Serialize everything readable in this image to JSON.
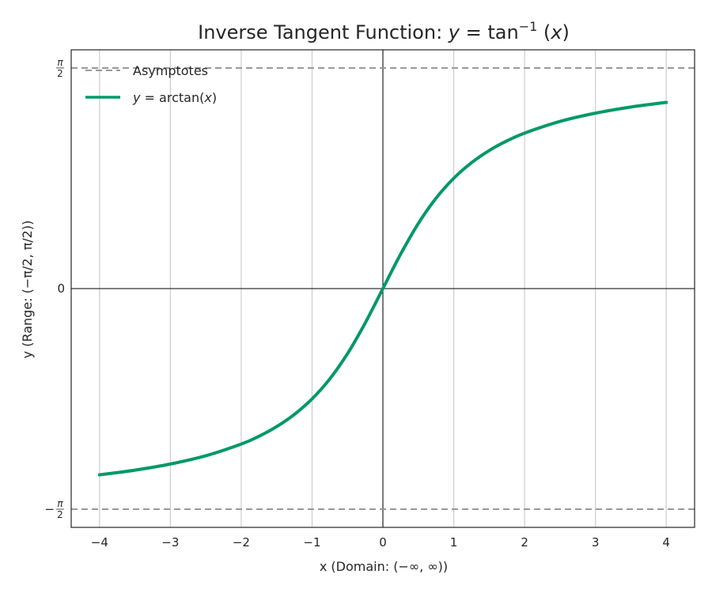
{
  "chart_data": {
    "type": "line",
    "title": {
      "prefix": "Inverse Tangent Function: ",
      "var": "y",
      "eq": " = tan",
      "sup": "−1",
      "open": " (",
      "arg": "x",
      "close": ")"
    },
    "xlabel": "x (Domain: (−∞, ∞))",
    "ylabel": "y (Range: (−π/2, π/2))",
    "xlim": [
      -4.4,
      4.4
    ],
    "ylim": [
      -1.7,
      1.7
    ],
    "x_ticks": [
      {
        "value": -4,
        "label": "−4"
      },
      {
        "value": -3,
        "label": "−3"
      },
      {
        "value": -2,
        "label": "−2"
      },
      {
        "value": -1,
        "label": "−1"
      },
      {
        "value": 0,
        "label": "0"
      },
      {
        "value": 1,
        "label": "1"
      },
      {
        "value": 2,
        "label": "2"
      },
      {
        "value": 3,
        "label": "3"
      },
      {
        "value": 4,
        "label": "4"
      }
    ],
    "y_ticks": [
      {
        "value": 1.5708,
        "sign": "",
        "num": "π",
        "den": "2"
      },
      {
        "value": 0,
        "sign": "",
        "num": "",
        "den": "",
        "label": "0"
      },
      {
        "value": -1.5708,
        "sign": "−",
        "num": "π",
        "den": "2"
      }
    ],
    "grid": "x-only",
    "legend_position": "top-left",
    "series": [
      {
        "name": "y = arctan(x)",
        "legend": {
          "var": "y",
          "eq": " = arctan(",
          "arg": "x",
          "close": ")"
        },
        "color": "#009966",
        "x": [
          -4,
          -3.5,
          -3,
          -2.5,
          -2,
          -1.75,
          -1.5,
          -1.25,
          -1,
          -0.75,
          -0.5,
          -0.25,
          0,
          0.25,
          0.5,
          0.75,
          1,
          1.25,
          1.5,
          1.75,
          2,
          2.5,
          3,
          3.5,
          4
        ],
        "y": [
          -1.3258,
          -1.2925,
          -1.249,
          -1.1903,
          -1.1071,
          -1.0517,
          -0.9828,
          -0.8961,
          -0.7854,
          -0.6435,
          -0.4636,
          -0.245,
          0,
          0.245,
          0.4636,
          0.6435,
          0.7854,
          0.8961,
          0.9828,
          1.0517,
          1.1071,
          1.1903,
          1.249,
          1.2925,
          1.3258
        ]
      },
      {
        "name": "Asymptotes",
        "color": "#999999",
        "style": "dashed",
        "y_values": [
          1.5708,
          -1.5708
        ]
      }
    ]
  }
}
